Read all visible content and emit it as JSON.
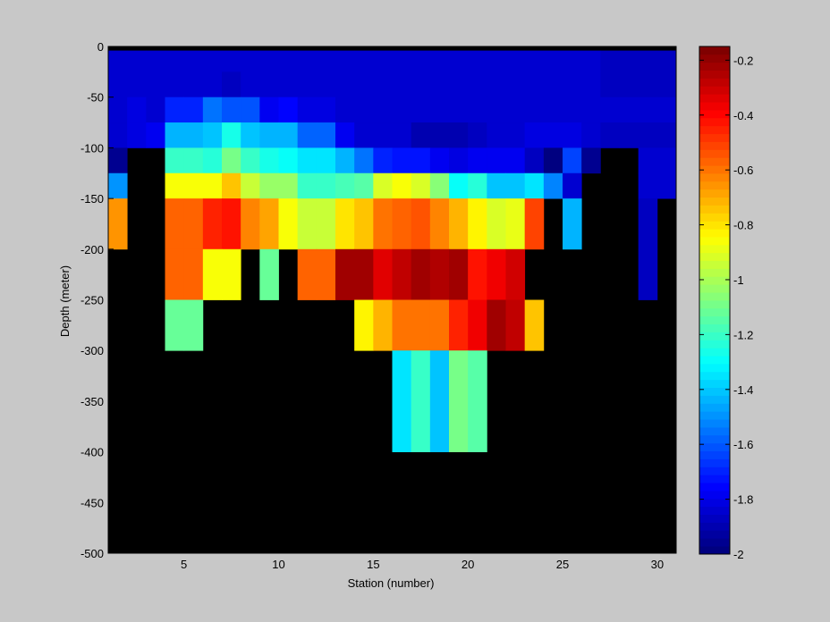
{
  "chart_data": {
    "type": "heatmap",
    "title": "",
    "xlabel": "Station (number)",
    "ylabel": "Depth (meter)",
    "xlim": [
      1,
      31
    ],
    "ylim": [
      -500,
      0
    ],
    "x_ticks": [
      5,
      10,
      15,
      20,
      25,
      30
    ],
    "y_ticks": [
      0,
      -50,
      -100,
      -150,
      -200,
      -250,
      -300,
      -350,
      -400,
      -450,
      -500
    ],
    "colorbar": {
      "range": [
        -2,
        -0.15
      ],
      "ticks": [
        -0.2,
        -0.4,
        -0.6,
        -0.8,
        -1,
        -1.2,
        -1.4,
        -1.6,
        -1.8,
        -2
      ],
      "colormap": "jet",
      "levels": 64
    },
    "background_color": "#000000",
    "top_band": {
      "depth_from": 0,
      "depth_to": -4,
      "color": "#000000"
    },
    "stations": [
      1,
      2,
      3,
      4,
      5,
      6,
      7,
      8,
      9,
      10,
      11,
      12,
      13,
      14,
      15,
      16,
      17,
      18,
      19,
      20,
      21,
      22,
      23,
      24,
      25,
      26,
      27,
      28,
      29,
      30,
      31
    ],
    "depth_rows": [
      {
        "from": -4,
        "to": -25
      },
      {
        "from": -25,
        "to": -50
      },
      {
        "from": -50,
        "to": -75
      },
      {
        "from": -75,
        "to": -100
      },
      {
        "from": -100,
        "to": -125
      },
      {
        "from": -125,
        "to": -150
      },
      {
        "from": -150,
        "to": -200
      },
      {
        "from": -200,
        "to": -250
      },
      {
        "from": -250,
        "to": -300
      },
      {
        "from": -300,
        "to": -400
      }
    ],
    "values": [
      [
        -1.85,
        -1.85,
        -1.85,
        -1.85,
        -1.85,
        -1.85,
        -1.85,
        -1.85,
        -1.85,
        -1.85,
        -1.85,
        -1.85,
        -1.85,
        -1.85,
        -1.85,
        -1.85,
        -1.85,
        -1.85,
        -1.85,
        -1.85,
        -1.85,
        -1.85,
        -1.85,
        -1.85,
        -1.85,
        -1.85,
        -1.88,
        -1.88,
        -1.88,
        -1.88,
        -1.88
      ],
      [
        -1.85,
        -1.85,
        -1.85,
        -1.85,
        -1.85,
        -1.85,
        -1.87,
        -1.85,
        -1.85,
        -1.85,
        -1.85,
        -1.85,
        -1.85,
        -1.85,
        -1.85,
        -1.85,
        -1.85,
        -1.85,
        -1.85,
        -1.85,
        -1.85,
        -1.85,
        -1.85,
        -1.85,
        -1.85,
        -1.85,
        -1.88,
        -1.88,
        -1.88,
        -1.88,
        -1.88
      ],
      [
        -1.85,
        -1.83,
        -1.85,
        -1.72,
        -1.72,
        -1.55,
        -1.62,
        -1.62,
        -1.8,
        -1.76,
        -1.82,
        -1.82,
        -1.85,
        -1.85,
        -1.85,
        -1.85,
        -1.85,
        -1.85,
        -1.85,
        -1.85,
        -1.85,
        -1.85,
        -1.85,
        -1.85,
        -1.85,
        -1.85,
        -1.85,
        -1.85,
        -1.85,
        -1.85,
        -1.9
      ],
      [
        -1.85,
        -1.83,
        -1.79,
        -1.45,
        -1.45,
        -1.4,
        -1.28,
        -1.42,
        -1.45,
        -1.45,
        -1.58,
        -1.58,
        -1.8,
        -1.85,
        -1.85,
        -1.85,
        -1.9,
        -1.9,
        -1.9,
        -1.87,
        -1.85,
        -1.85,
        -1.83,
        -1.83,
        -1.83,
        -1.85,
        -1.88,
        -1.88,
        -1.88,
        -1.88,
        -1.9
      ],
      [
        -1.97,
        null,
        null,
        -1.2,
        -1.2,
        -1.25,
        -1.1,
        -1.22,
        -1.28,
        -1.3,
        -1.35,
        -1.35,
        -1.45,
        -1.55,
        -1.7,
        -1.75,
        -1.75,
        -1.8,
        -1.83,
        -1.8,
        -1.78,
        -1.8,
        -1.88,
        -2.0,
        -1.65,
        -1.98,
        null,
        null,
        -1.85,
        -1.85,
        -1.9
      ],
      [
        -1.5,
        null,
        null,
        -0.85,
        -0.85,
        -0.85,
        -0.75,
        -0.95,
        -1.03,
        -1.03,
        -1.2,
        -1.2,
        -1.18,
        -1.15,
        -0.9,
        -0.85,
        -0.9,
        -1.05,
        -1.3,
        -1.25,
        -1.4,
        -1.4,
        -1.35,
        -1.52,
        -1.85,
        null,
        null,
        null,
        -1.85,
        -1.85,
        null
      ],
      [
        -0.65,
        null,
        null,
        -0.55,
        -0.55,
        -0.45,
        -0.42,
        -0.62,
        -0.68,
        -0.85,
        -0.95,
        -0.95,
        -0.8,
        -0.75,
        -0.58,
        -0.55,
        -0.52,
        -0.62,
        -0.7,
        -0.82,
        -0.9,
        -0.88,
        -0.5,
        null,
        -1.45,
        null,
        null,
        null,
        -1.88,
        null,
        null
      ],
      [
        null,
        null,
        null,
        -0.55,
        -0.55,
        -0.85,
        -0.85,
        null,
        -1.12,
        null,
        -0.55,
        -0.55,
        -0.22,
        -0.2,
        -0.32,
        -0.28,
        -0.2,
        -0.25,
        -0.2,
        -0.4,
        -0.35,
        -0.3,
        null,
        null,
        null,
        null,
        null,
        null,
        -1.88,
        null,
        null
      ],
      [
        null,
        null,
        null,
        -1.12,
        -1.12,
        null,
        null,
        null,
        null,
        null,
        null,
        null,
        null,
        -0.82,
        -0.72,
        -0.6,
        -0.6,
        -0.6,
        -0.45,
        -0.35,
        -0.22,
        -0.28,
        -0.75,
        null,
        null,
        null,
        null,
        null,
        null,
        null,
        null
      ],
      [
        null,
        null,
        null,
        null,
        null,
        null,
        null,
        null,
        null,
        null,
        null,
        null,
        null,
        null,
        null,
        -1.35,
        -1.22,
        -1.4,
        -1.08,
        -1.15,
        null,
        null,
        null,
        null,
        null,
        null,
        null,
        null,
        null,
        null,
        null
      ]
    ]
  }
}
